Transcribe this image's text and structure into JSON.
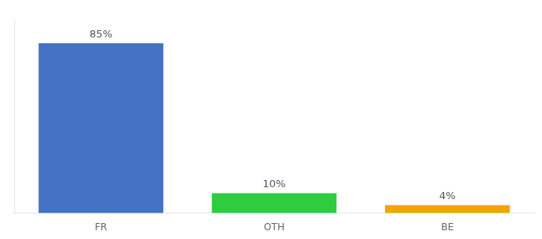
{
  "chart_data": {
    "type": "bar",
    "categories": [
      "FR",
      "OTH",
      "BE"
    ],
    "values": [
      85,
      10,
      4
    ],
    "value_labels": [
      "85%",
      "10%",
      "4%"
    ],
    "colors": [
      "#4472c4",
      "#2ecc40",
      "#f0a500"
    ],
    "ylim": [
      0,
      97
    ],
    "data_labels": true,
    "tick_labels": "x",
    "grid": false
  }
}
